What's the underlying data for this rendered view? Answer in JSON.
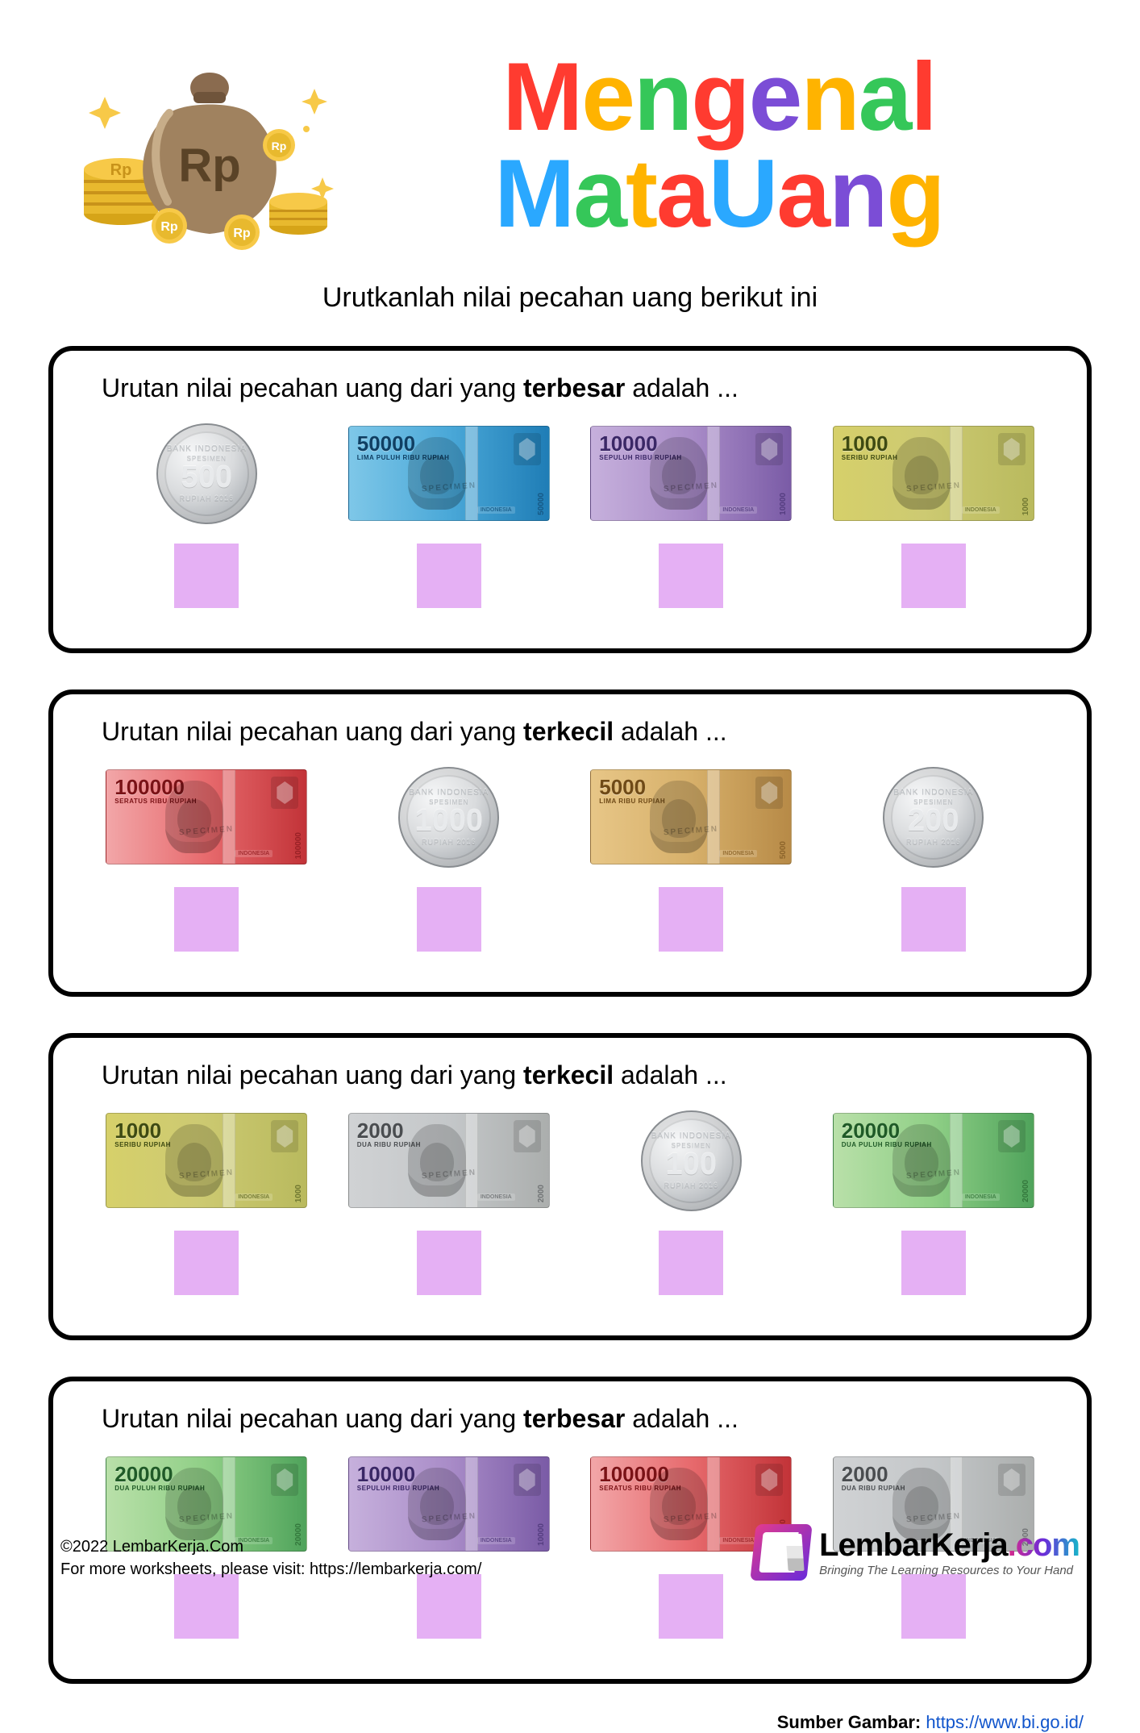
{
  "title_line1": "Mengenal",
  "title_line2": "Mata Uang",
  "title_colors_line1": [
    "#ff3b30",
    "#ffb300",
    "#35c759",
    "#ff3b30",
    "#7b4dd6",
    "#ffb300",
    "#35c759",
    "#ff3b30"
  ],
  "title_colors_line2": [
    "#2aa8ff",
    "#35c759",
    "#ffb300",
    "#ff3b30",
    "#2aa8ff",
    "#ff3b30",
    "#7b4dd6",
    "#ffb300",
    "#ff2e97"
  ],
  "subtitle": "Urutkanlah nilai pecahan uang berikut ini",
  "answer_box_color": "#e5b0f4",
  "box_border_color": "#000000",
  "coin_label_bank": "BANK INDONESIA",
  "coin_label_spec": "SPESIMEN",
  "coin_label_rupiah": "RUPIAH 2016",
  "bill_palettes": {
    "1000": {
      "bg": "linear-gradient(90deg,#d6d06a 0%,#cdca72 45%,#b9ba5e 100%)",
      "text": "#3e4a12",
      "sub": "SERIBU RUPIAH"
    },
    "2000": {
      "bg": "linear-gradient(90deg,#d0d2d4 0%,#c4c7c9 50%,#abaead 100%)",
      "text": "#4a4d50",
      "sub": "DUA RIBU RUPIAH"
    },
    "5000": {
      "bg": "linear-gradient(90deg,#e7c687 0%,#d7b06a 50%,#b78a47 100%)",
      "text": "#6f4a17",
      "sub": "LIMA RIBU RUPIAH"
    },
    "10000": {
      "bg": "linear-gradient(90deg,#c6b0dc 0%,#a98cc8 50%,#7a5ba6 100%)",
      "text": "#3a2766",
      "sub": "SEPULUH RIBU RUPIAH"
    },
    "20000": {
      "bg": "linear-gradient(90deg,#b9e0a9 0%,#8fcf86 50%,#4fa35b 100%)",
      "text": "#1f5a27",
      "sub": "DUA PULUH RIBU RUPIAH"
    },
    "50000": {
      "bg": "linear-gradient(90deg,#7ec7e8 0%,#4aa8d8 50%,#1f7db6 100%)",
      "text": "#0f3f63",
      "sub": "LIMA PULUH RIBU RUPIAH"
    },
    "100000": {
      "bg": "linear-gradient(90deg,#f2a6a8 0%,#e76a6d 50%,#c23338 100%)",
      "text": "#7a1216",
      "sub": "SERATUS RIBU RUPIAH"
    }
  },
  "exercises": [
    {
      "prompt_pre": "Urutan nilai pecahan uang dari yang ",
      "prompt_bold": "terbesar",
      "prompt_post": " adalah ...",
      "items": [
        {
          "type": "coin",
          "value": "500"
        },
        {
          "type": "bill",
          "value": "50000"
        },
        {
          "type": "bill",
          "value": "10000"
        },
        {
          "type": "bill",
          "value": "1000"
        }
      ]
    },
    {
      "prompt_pre": "Urutan nilai pecahan uang dari yang ",
      "prompt_bold": "terkecil",
      "prompt_post": " adalah ...",
      "items": [
        {
          "type": "bill",
          "value": "100000"
        },
        {
          "type": "coin",
          "value": "1000"
        },
        {
          "type": "bill",
          "value": "5000"
        },
        {
          "type": "coin",
          "value": "200"
        }
      ]
    },
    {
      "prompt_pre": "Urutan nilai pecahan uang dari yang ",
      "prompt_bold": "terkecil",
      "prompt_post": " adalah ...",
      "items": [
        {
          "type": "bill",
          "value": "1000"
        },
        {
          "type": "bill",
          "value": "2000"
        },
        {
          "type": "coin",
          "value": "100"
        },
        {
          "type": "bill",
          "value": "20000"
        }
      ]
    },
    {
      "prompt_pre": "Urutan nilai pecahan uang dari yang ",
      "prompt_bold": "terbesar",
      "prompt_post": " adalah ...",
      "items": [
        {
          "type": "bill",
          "value": "20000"
        },
        {
          "type": "bill",
          "value": "10000"
        },
        {
          "type": "bill",
          "value": "100000"
        },
        {
          "type": "bill",
          "value": "2000"
        }
      ]
    }
  ],
  "source_label": "Sumber Gambar: ",
  "source_url_text": "https://www.bi.go.id/",
  "copyright_line1": "©2022 LembarKerja.Com",
  "copyright_line2": "For more worksheets, please visit: https://lembarkerja.com/",
  "logo_brand": "LembarKerja",
  "logo_dotcom": ".com",
  "logo_slogan": "Bringing The Learning Resources to Your Hand"
}
